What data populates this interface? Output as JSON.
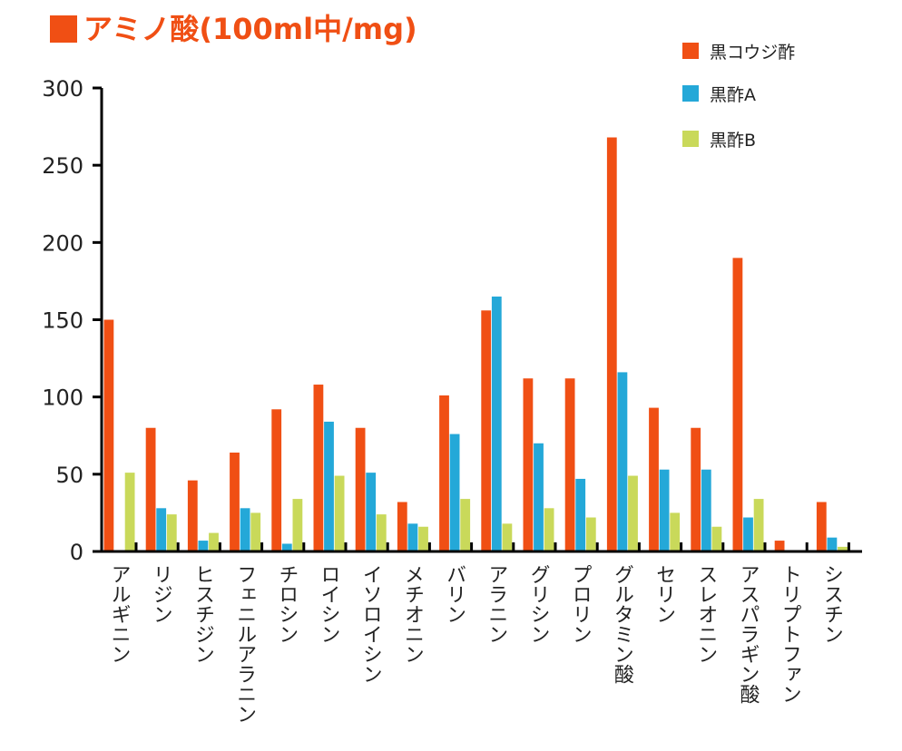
{
  "title": "アミノ酸(100ml中/mg)",
  "colors": {
    "title": "#f04f14",
    "series": [
      "#f04f14",
      "#24a8d8",
      "#c9d95a"
    ],
    "axis": "#000000"
  },
  "chart_data": {
    "type": "bar",
    "title": "アミノ酸(100ml中/mg)",
    "xlabel": "",
    "ylabel": "",
    "ylim": [
      0,
      300
    ],
    "yticks": [
      0,
      50,
      100,
      150,
      200,
      250,
      300
    ],
    "grid": false,
    "legend_position": "top-right",
    "categories": [
      "アルギニン",
      "リジン",
      "ヒスチジン",
      "フェニルアラニン",
      "チロシン",
      "ロイシン",
      "イソロイシン",
      "メチオニン",
      "バリン",
      "アラニン",
      "グリシン",
      "プロリン",
      "グルタミン酸",
      "セリン",
      "スレオニン",
      "アスパラギン酸",
      "トリプトファン",
      "シスチン"
    ],
    "series": [
      {
        "name": "黒コウジ酢",
        "values": [
          150,
          80,
          46,
          64,
          92,
          108,
          80,
          32,
          101,
          156,
          112,
          112,
          268,
          93,
          80,
          190,
          7,
          32
        ]
      },
      {
        "name": "黒酢A",
        "values": [
          0,
          28,
          7,
          28,
          5,
          84,
          51,
          18,
          76,
          165,
          70,
          47,
          116,
          53,
          53,
          22,
          0,
          9
        ]
      },
      {
        "name": "黒酢B",
        "values": [
          51,
          24,
          12,
          25,
          34,
          49,
          24,
          16,
          34,
          18,
          28,
          22,
          49,
          25,
          16,
          34,
          0,
          3
        ]
      }
    ]
  }
}
